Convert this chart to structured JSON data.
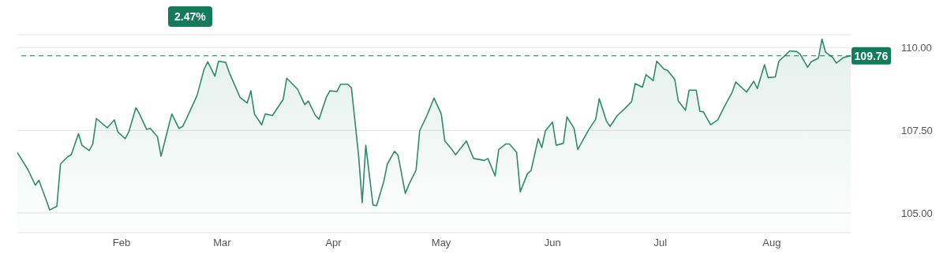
{
  "chart_data": {
    "type": "area",
    "annotations": [
      "2.47%"
    ],
    "x": [
      "--01-03",
      "--01-06",
      "--01-08",
      "--01-09",
      "--01-11",
      "--01-12",
      "--01-14",
      "--01-15",
      "--01-17",
      "--01-18",
      "--01-20",
      "--01-21",
      "--01-23",
      "--01-24",
      "--01-25",
      "--01-28",
      "--01-30",
      "--01-31",
      "--02-02",
      "--02-03",
      "--02-05",
      "--02-06",
      "--02-08",
      "--02-09",
      "--02-11",
      "--02-12",
      "--02-14",
      "--02-15",
      "--02-17",
      "--02-18",
      "--02-19",
      "--02-22",
      "--02-24",
      "--02-25",
      "--02-27",
      "--02-28",
      "--03-02",
      "--03-03",
      "--03-06",
      "--03-08",
      "--03-09",
      "--03-10",
      "--03-12",
      "--03-13",
      "--03-15",
      "--03-18",
      "--03-19",
      "--03-22",
      "--03-24",
      "--03-25",
      "--03-27",
      "--03-28",
      "--03-30",
      "--03-31",
      "--04-02",
      "--04-03",
      "--04-05",
      "--04-06",
      "--04-08",
      "--04-09",
      "--04-10",
      "--04-12",
      "--04-13",
      "--04-15",
      "--04-16",
      "--04-18",
      "--04-19",
      "--04-21",
      "--04-22",
      "--04-24",
      "--04-25",
      "--04-27",
      "--04-29",
      "--05-01",
      "--05-02",
      "--05-04",
      "--05-05",
      "--05-08",
      "--05-10",
      "--05-13",
      "--05-14",
      "--05-16",
      "--05-17",
      "--05-19",
      "--05-20",
      "--05-22",
      "--05-23",
      "--05-25",
      "--05-26",
      "--05-28",
      "--05-29",
      "--05-30",
      "--06-01",
      "--06-02",
      "--06-04",
      "--06-05",
      "--06-07",
      "--06-08",
      "--06-11",
      "--06-13",
      "--06-14",
      "--06-16",
      "--06-17",
      "--06-19",
      "--06-21",
      "--06-23",
      "--06-24",
      "--06-26",
      "--06-27",
      "--06-29",
      "--06-30",
      "--07-02",
      "--07-03",
      "--07-05",
      "--07-06",
      "--07-08",
      "--07-09",
      "--07-11",
      "--07-12",
      "--07-13",
      "--07-15",
      "--07-17",
      "--07-18",
      "--07-19",
      "--07-21",
      "--07-22",
      "--07-25",
      "--07-27",
      "--07-28",
      "--07-30",
      "--07-31",
      "--08-02",
      "--08-03",
      "--08-05",
      "--08-06",
      "--08-08",
      "--08-09",
      "--08-11",
      "--08-12",
      "--08-14",
      "--08-15",
      "--08-16",
      "--08-18",
      "--08-19",
      "--08-21",
      "--08-23"
    ],
    "series": [
      {
        "color": "#2e8a6c",
        "values": [
          106.83,
          106.3,
          105.84,
          105.99,
          105.4,
          105.09,
          105.2,
          106.48,
          106.7,
          106.76,
          107.4,
          107.05,
          106.89,
          107.09,
          107.86,
          107.58,
          107.82,
          107.45,
          107.25,
          107.45,
          108.19,
          108.0,
          107.53,
          107.56,
          107.31,
          106.72,
          107.58,
          108.0,
          107.56,
          107.62,
          107.84,
          108.55,
          109.36,
          109.58,
          109.14,
          109.6,
          109.56,
          109.25,
          108.5,
          108.33,
          108.7,
          108.0,
          107.67,
          108.0,
          107.95,
          108.44,
          109.08,
          108.75,
          108.28,
          108.39,
          107.95,
          107.84,
          108.5,
          108.7,
          108.68,
          108.9,
          108.9,
          108.79,
          106.74,
          105.31,
          107.05,
          105.24,
          105.22,
          105.95,
          106.48,
          106.87,
          106.74,
          105.59,
          105.86,
          106.3,
          107.49,
          107.95,
          108.48,
          108.0,
          107.18,
          106.92,
          106.76,
          107.18,
          106.65,
          106.59,
          106.65,
          106.12,
          106.92,
          107.09,
          107.09,
          106.83,
          105.64,
          106.19,
          106.28,
          107.25,
          106.98,
          107.49,
          107.75,
          107.05,
          107.11,
          107.91,
          107.56,
          106.92,
          107.51,
          107.84,
          108.46,
          107.78,
          107.62,
          107.95,
          108.15,
          108.37,
          108.92,
          108.81,
          109.19,
          109.01,
          109.6,
          109.36,
          109.32,
          109.05,
          108.39,
          108.11,
          108.72,
          108.72,
          108.08,
          108.06,
          107.67,
          107.82,
          108.04,
          108.26,
          108.66,
          108.97,
          108.66,
          108.99,
          108.77,
          109.49,
          109.1,
          109.12,
          109.6,
          109.8,
          109.91,
          109.89,
          109.8,
          109.41,
          109.58,
          109.69,
          110.27,
          109.87,
          109.71,
          109.54,
          109.71,
          109.76
        ]
      }
    ],
    "xlim": [
      "--01-03",
      "--08-23"
    ],
    "xticks": [
      {
        "value": "--02-01",
        "label": "Feb"
      },
      {
        "value": "--03-01",
        "label": "Mar"
      },
      {
        "value": "--04-01",
        "label": "Apr"
      },
      {
        "value": "--05-01",
        "label": "May"
      },
      {
        "value": "--06-01",
        "label": "Jun"
      },
      {
        "value": "--07-01",
        "label": "Jul"
      },
      {
        "value": "--08-01",
        "label": "Aug"
      }
    ],
    "ylim": [
      104.4,
      110.4
    ],
    "yticks": [
      {
        "value": 105,
        "label": "105.00"
      },
      {
        "value": 107.5,
        "label": "107.50"
      },
      {
        "value": 110,
        "label": "110.00"
      }
    ],
    "grid": "y",
    "ref_lines": [
      {
        "axis": "y",
        "value": 109.76,
        "label": "109.76",
        "color": "#137a5c",
        "line_style": "dashed"
      }
    ]
  }
}
